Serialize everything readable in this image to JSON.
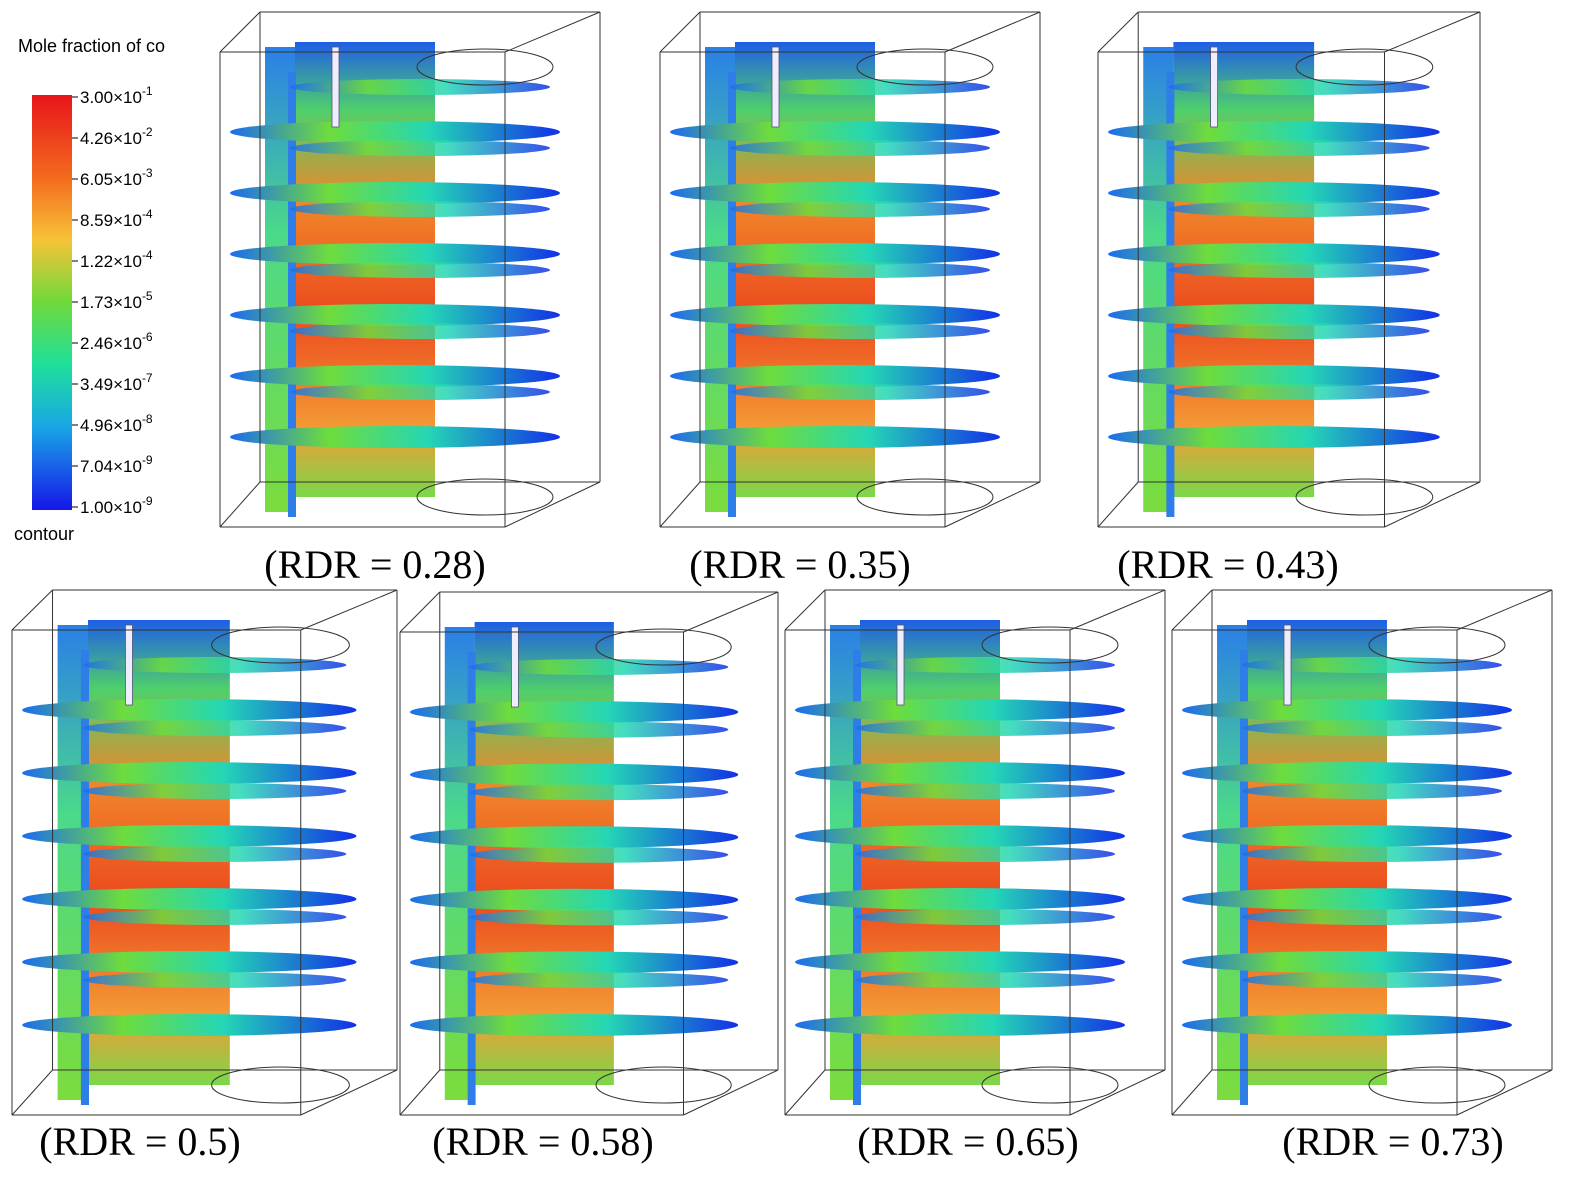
{
  "legend": {
    "title": "Mole fraction of co",
    "ticks": [
      {
        "base": "3.00×10",
        "exponent": "-1"
      },
      {
        "base": "4.26×10",
        "exponent": "-2"
      },
      {
        "base": "6.05×10",
        "exponent": "-3"
      },
      {
        "base": "8.59×10",
        "exponent": "-4"
      },
      {
        "base": "1.22×10",
        "exponent": "-4"
      },
      {
        "base": "1.73×10",
        "exponent": "-5"
      },
      {
        "base": "2.46×10",
        "exponent": "-6"
      },
      {
        "base": "3.49×10",
        "exponent": "-7"
      },
      {
        "base": "4.96×10",
        "exponent": "-8"
      },
      {
        "base": "7.04×10",
        "exponent": "-9"
      },
      {
        "base": "1.00×10",
        "exponent": "-9"
      }
    ],
    "footer": "contour"
  },
  "panels": [
    {
      "caption": "(RDR = 0.28)"
    },
    {
      "caption": "(RDR = 0.35)"
    },
    {
      "caption": "(RDR = 0.43)"
    },
    {
      "caption": "(RDR = 0.5)"
    },
    {
      "caption": "(RDR = 0.58)"
    },
    {
      "caption": "(RDR = 0.65)"
    },
    {
      "caption": "(RDR = 0.73)"
    }
  ]
}
